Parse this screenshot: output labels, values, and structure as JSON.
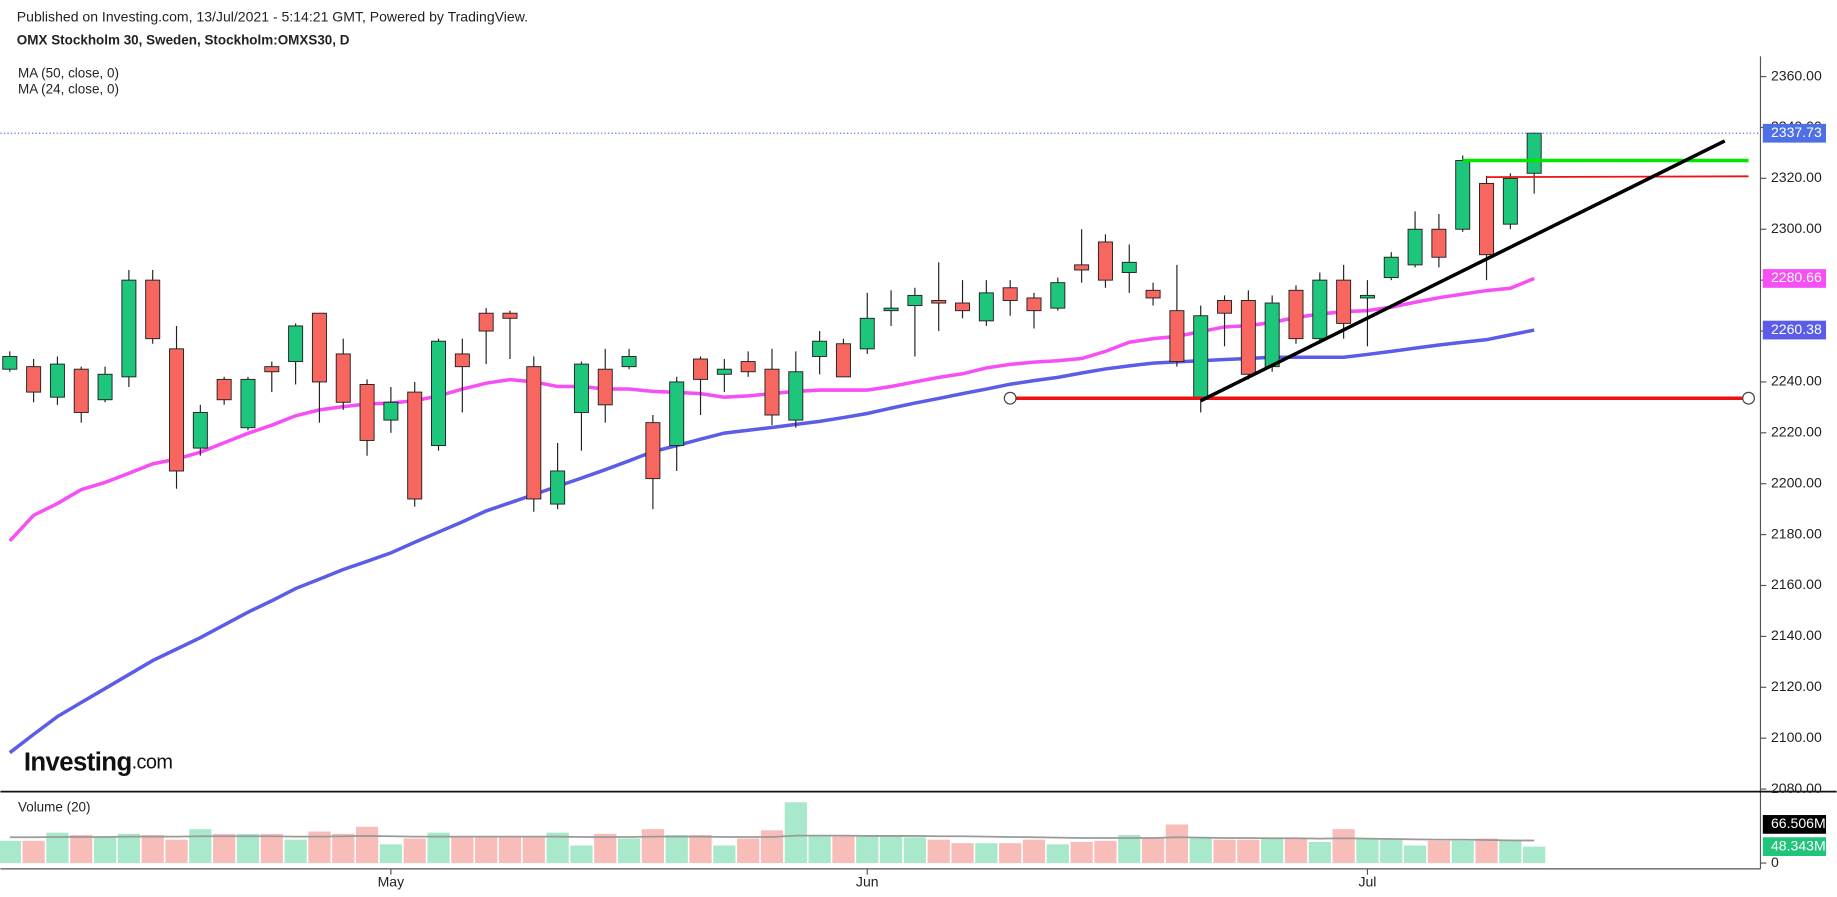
{
  "chart_data": {
    "type": "candlestick",
    "subtitle": "Published on Investing.com, 13/Jul/2021 - 5:14:21 GMT, Powered by TradingView.",
    "title": "OMX Stockholm 30, Sweden, Stockholm:OMXS30, D",
    "watermark": {
      "brand": "Investing",
      "suffix": ".com"
    },
    "categories": [
      null,
      null,
      null,
      null,
      null,
      null,
      null,
      null,
      null,
      null,
      null,
      null,
      null,
      null,
      null,
      null,
      "May",
      null,
      null,
      null,
      null,
      null,
      null,
      null,
      null,
      null,
      null,
      null,
      null,
      null,
      null,
      null,
      null,
      null,
      null,
      null,
      "Jun",
      null,
      null,
      null,
      null,
      null,
      null,
      null,
      null,
      null,
      null,
      null,
      null,
      null,
      null,
      null,
      null,
      null,
      null,
      null,
      null,
      "Jul",
      null,
      null,
      null,
      null,
      null,
      null,
      null
    ],
    "open": [
      2245,
      2246,
      2234,
      2245,
      2233,
      2242,
      2280,
      2253,
      2214,
      2241,
      2222,
      2246,
      2248,
      2267,
      2251,
      2239,
      2225,
      2236,
      2215,
      2251,
      2267,
      2267,
      2246,
      2192,
      2228,
      2245,
      2246,
      2224,
      2215,
      2249,
      2243,
      2248,
      2245,
      2225,
      2250,
      2255,
      2253,
      2268,
      2270,
      2272,
      2271,
      2264,
      2277,
      2273,
      2269,
      2286,
      2295,
      2283,
      2276,
      2268,
      2234,
      2272,
      2272,
      2246,
      2276,
      2257,
      2280,
      2273,
      2281,
      2286,
      2300,
      2300,
      2318,
      2302,
      2322
    ],
    "high": [
      2252,
      2249,
      2250,
      2246,
      2246,
      2284,
      2284,
      2262,
      2231,
      2242,
      2242,
      2248,
      2263,
      2267,
      2257,
      2241,
      2238,
      2240,
      2257,
      2257,
      2269,
      2268,
      2250,
      2216,
      2248,
      2253,
      2253,
      2227,
      2242,
      2250,
      2249,
      2252,
      2253,
      2252,
      2260,
      2257,
      2275,
      2276,
      2277,
      2287,
      2280,
      2280,
      2280,
      2275,
      2281,
      2300,
      2298,
      2294,
      2279,
      2286,
      2270,
      2274,
      2276,
      2274,
      2278,
      2283,
      2286,
      2280,
      2291,
      2307,
      2306,
      2329,
      2321,
      2322,
      2338
    ],
    "low": [
      2244,
      2232,
      2231,
      2224,
      2232,
      2238,
      2255,
      2198,
      2211,
      2231,
      2221,
      2236,
      2239,
      2224,
      2229,
      2211,
      2220,
      2191,
      2213,
      2228,
      2247,
      2249,
      2189,
      2190,
      2213,
      2224,
      2245,
      2190,
      2205,
      2227,
      2236,
      2242,
      2223,
      2222,
      2243,
      2242,
      2251,
      2262,
      2250,
      2260,
      2265,
      2262,
      2266,
      2261,
      2268,
      2279,
      2277,
      2275,
      2270,
      2246,
      2228,
      2254,
      2241,
      2244,
      2255,
      2255,
      2257,
      2254,
      2280,
      2285,
      2285,
      2299,
      2280,
      2300,
      2314
    ],
    "close": [
      2250,
      2236,
      2247,
      2228,
      2243,
      2280,
      2257,
      2205,
      2228,
      2233,
      2241,
      2244,
      2262,
      2240,
      2232,
      2217,
      2232,
      2194,
      2256,
      2246,
      2260,
      2265,
      2194,
      2205,
      2247,
      2231,
      2250,
      2202,
      2240,
      2241,
      2245,
      2244,
      2227,
      2244,
      2256,
      2242,
      2265,
      2269,
      2274,
      2271,
      2268,
      2275,
      2272,
      2268,
      2279,
      2284,
      2280,
      2287,
      2273,
      2248,
      2266,
      2267,
      2243,
      2271,
      2257,
      2280,
      2263,
      2274,
      2289,
      2300,
      2289,
      2327,
      2290,
      2320,
      2337.73
    ],
    "up_color": "#1ec67c",
    "down_color": "#f7675f",
    "last_price_color": "#4e6fe6",
    "ylim": [
      2079,
      2368
    ],
    "yticks": [
      {
        "value": 2080,
        "label": "2080.00"
      },
      {
        "value": 2100,
        "label": "2100.00"
      },
      {
        "value": 2120,
        "label": "2120.00"
      },
      {
        "value": 2140,
        "label": "2140.00"
      },
      {
        "value": 2160,
        "label": "2160.00"
      },
      {
        "value": 2180,
        "label": "2180.00"
      },
      {
        "value": 2200,
        "label": "2200.00"
      },
      {
        "value": 2220,
        "label": "2220.00"
      },
      {
        "value": 2240,
        "label": "2240.00"
      },
      {
        "value": 2260,
        "label": "2260.00"
      },
      {
        "value": 2280,
        "label": "2280.00"
      },
      {
        "value": 2300,
        "label": "2300.00"
      },
      {
        "value": 2320,
        "label": "2320.00"
      },
      {
        "value": 2340,
        "label": "2340.00"
      },
      {
        "value": 2360,
        "label": "2360.00"
      }
    ],
    "series": [
      {
        "name": "MA (50, close, 0)",
        "color": "#5b5ce8",
        "values": [
          2094.3,
          2101.5,
          2108.5,
          2114,
          2119.5,
          2125,
          2130.5,
          2135,
          2139.5,
          2144.5,
          2149.5,
          2154,
          2158.8,
          2162.5,
          2166.3,
          2169.5,
          2172.8,
          2177,
          2181,
          2185,
          2189.3,
          2192.5,
          2195.7,
          2199,
          2202.2,
          2205.5,
          2209,
          2212.6,
          2215,
          2217.5,
          2219.9,
          2221,
          2222.1,
          2223.3,
          2224.5,
          2226,
          2227.6,
          2229.7,
          2231.7,
          2233.5,
          2235.4,
          2237.2,
          2239.1,
          2240.5,
          2241.8,
          2243.5,
          2245.1,
          2246.3,
          2247.4,
          2247.9,
          2248.3,
          2248.8,
          2249.2,
          2249.7,
          2249.7,
          2249.7,
          2249.7,
          2250.8,
          2252,
          2253.3,
          2254.5,
          2255.6,
          2256.6,
          2258.5,
          2260.38
        ]
      },
      {
        "name": "MA (24, close, 0)",
        "color": "#f54ff5",
        "values": [
          2177.5,
          2187.6,
          2192.2,
          2197.7,
          2200.5,
          2204.1,
          2207.8,
          2209.7,
          2212.4,
          2216.1,
          2219.8,
          2223,
          2226.7,
          2229,
          2230.3,
          2231.3,
          2231.7,
          2232.6,
          2234.5,
          2237.2,
          2239.5,
          2240.9,
          2240,
          2238.2,
          2238.2,
          2237.2,
          2237.2,
          2236.3,
          2235.9,
          2235.4,
          2234,
          2234.5,
          2235.4,
          2236.3,
          2236.8,
          2236.8,
          2236.8,
          2238.2,
          2240,
          2241.8,
          2243.2,
          2245.5,
          2246.9,
          2247.8,
          2248.3,
          2249.2,
          2252,
          2255.6,
          2257,
          2257.9,
          2259.8,
          2261.6,
          2262.1,
          2263.4,
          2265.3,
          2266.7,
          2267.6,
          2268,
          2269.4,
          2271.3,
          2273.1,
          2274.5,
          2275.9,
          2276.8,
          2280.66
        ]
      }
    ],
    "volume": {
      "name": "Volume (20)",
      "values": [
        65.5,
        65.5,
        89.7,
        82.8,
        75.9,
        86.2,
        82.8,
        69,
        100,
        86,
        86,
        86,
        69,
        93.1,
        86.2,
        106.9,
        55.2,
        72.4,
        89.7,
        79.3,
        79.3,
        79.3,
        75.9,
        89.7,
        51.7,
        86.2,
        72.4,
        100,
        82.8,
        82.8,
        51.7,
        72.4,
        96.6,
        179.3,
        82.8,
        79.3,
        82.8,
        79.3,
        75.9,
        69,
        58.6,
        58.6,
        58.6,
        69,
        55.2,
        62.1,
        65.5,
        82.8,
        75.9,
        113.8,
        72.4,
        69,
        69,
        72.4,
        72.4,
        62.1,
        100,
        72.4,
        69,
        51.7,
        65.5,
        65.5,
        72.4,
        65.5,
        48.343
      ],
      "last_value_label": "48.343M",
      "up_color": "#a8e8cb",
      "down_color": "#f9bdb9",
      "ylim": [
        0,
        197
      ],
      "yticks": [
        0
      ],
      "ma": {
        "color": "#9a9a9a",
        "last_value_label": "66.506M",
        "values": [
          76,
          76,
          77,
          77,
          77,
          78,
          78,
          78,
          79,
          79,
          79,
          79,
          78,
          78,
          79,
          80,
          79,
          78,
          78,
          78,
          78,
          78,
          78,
          78,
          77,
          77,
          77,
          78,
          78,
          78,
          77,
          77,
          77,
          81,
          81,
          81,
          80,
          80,
          80,
          79,
          79,
          78,
          77,
          76,
          75,
          74,
          74,
          74,
          74,
          76,
          75,
          74,
          74,
          73,
          73,
          72,
          73,
          72,
          71,
          70,
          69,
          69,
          68,
          67,
          66.506
        ]
      }
    },
    "drawings": [
      {
        "color": "#00e600",
        "width": 3,
        "x": [
          61,
          73
        ],
        "y": [
          2327,
          2327
        ]
      },
      {
        "color": "#ee1111",
        "width": 1.5,
        "x": [
          62,
          73
        ],
        "y": [
          2320.5,
          2320.8
        ]
      },
      {
        "color": "#ee1111",
        "width": 3,
        "x": [
          42,
          73
        ],
        "y": [
          2233.6,
          2233.6
        ],
        "handles": true
      },
      {
        "color": "#000000",
        "width": 3,
        "x": [
          50,
          72
        ],
        "y": [
          2232.6,
          2334.7
        ]
      }
    ]
  }
}
